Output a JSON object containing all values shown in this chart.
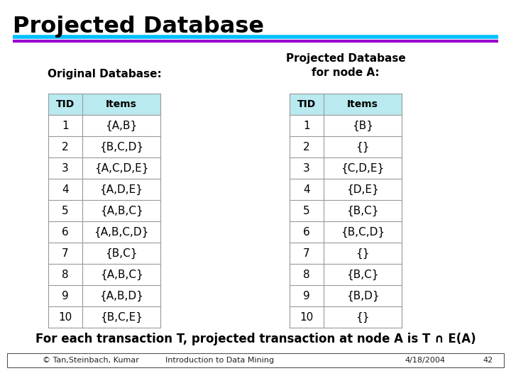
{
  "title": "Projected Database",
  "title_color": "#000000",
  "bg_color": "#ffffff",
  "line1_color": "#00BFFF",
  "line2_color": "#9900CC",
  "orig_label": "Original Database:",
  "proj_label_line1": "Projected Database",
  "proj_label_line2": "for node A:",
  "orig_tids": [
    "TID",
    "1",
    "2",
    "3",
    "4",
    "5",
    "6",
    "7",
    "8",
    "9",
    "10"
  ],
  "orig_items": [
    "Items",
    "{A,B}",
    "{B,C,D}",
    "{A,C,D,E}",
    "{A,D,E}",
    "{A,B,C}",
    "{A,B,C,D}",
    "{B,C}",
    "{A,B,C}",
    "{A,B,D}",
    "{B,C,E}"
  ],
  "proj_tids": [
    "TID",
    "1",
    "2",
    "3",
    "4",
    "5",
    "6",
    "7",
    "8",
    "9",
    "10"
  ],
  "proj_items": [
    "Items",
    "{B}",
    "{}",
    "{C,D,E}",
    "{D,E}",
    "{B,C}",
    "{B,C,D}",
    "{}",
    "{B,C}",
    "{B,D}",
    "{}"
  ],
  "footer_text": "For each transaction T, projected transaction at node A is T ∩ E(A)",
  "table_header_bg": "#b8eaf0",
  "table_row_bg": "#ffffff",
  "table_border_color": "#999999",
  "bottom_left": "© Tan,Steinbach, Kumar",
  "bottom_mid": "Introduction to Data Mining",
  "bottom_right": "4/18/2004",
  "bottom_page": "42"
}
